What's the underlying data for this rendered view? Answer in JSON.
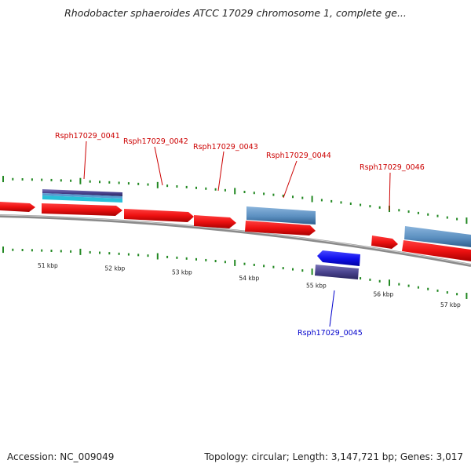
{
  "title": "Rhodobacter sphaeroides ATCC 17029 chromosome 1, complete ge...",
  "footer": {
    "accession": "Accession: NC_009049",
    "summary": "Topology: circular; Length: 3,147,721 bp; Genes: 3,017"
  },
  "axis": {
    "unit": "kbp",
    "ticks": [
      {
        "kbp": 51,
        "label": "51 kbp"
      },
      {
        "kbp": 52,
        "label": "52 kbp"
      },
      {
        "kbp": 53,
        "label": "53 kbp"
      },
      {
        "kbp": 54,
        "label": "54 kbp"
      },
      {
        "kbp": 55,
        "label": "55 kbp"
      },
      {
        "kbp": 56,
        "label": "56 kbp"
      },
      {
        "kbp": 57,
        "label": "57 kbp"
      }
    ]
  },
  "genes": [
    {
      "name": "Rsph17029_0041",
      "strand": "+",
      "color": "#cc0000"
    },
    {
      "name": "Rsph17029_0042",
      "strand": "+",
      "color": "#cc0000"
    },
    {
      "name": "Rsph17029_0043",
      "strand": "+",
      "color": "#cc0000"
    },
    {
      "name": "Rsph17029_0044",
      "strand": "+",
      "color": "#cc0000"
    },
    {
      "name": "Rsph17029_0045",
      "strand": "-",
      "color": "#0000cc"
    },
    {
      "name": "Rsph17029_0046",
      "strand": "+",
      "color": "#cc0000"
    }
  ],
  "colors": {
    "forward_gene": "#ee1111",
    "reverse_gene": "#1111ee",
    "cds_feature": "#5b8fc0",
    "misc_feature": "#4b4590",
    "backbone": "#808080",
    "ticks": "#228822"
  }
}
